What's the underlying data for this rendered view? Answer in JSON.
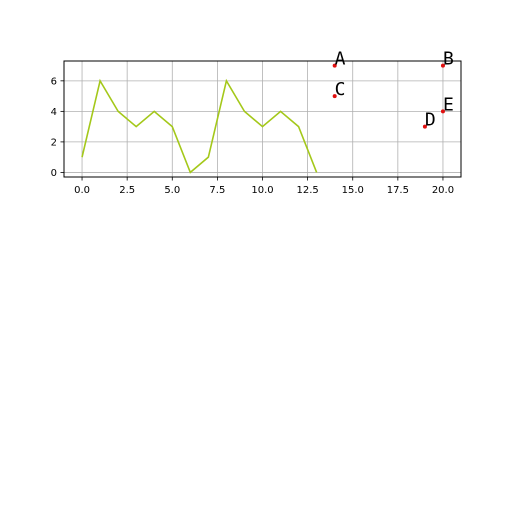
{
  "chart_data": {
    "type": "line",
    "xlim": [
      -1,
      21
    ],
    "ylim": [
      -0.3,
      7.3
    ],
    "xticks": [
      0.0,
      2.5,
      5.0,
      7.5,
      10.0,
      12.5,
      15.0,
      17.5,
      20.0
    ],
    "xtick_labels": [
      "0.0",
      "2.5",
      "5.0",
      "7.5",
      "10.0",
      "12.5",
      "15.0",
      "17.5",
      "20.0"
    ],
    "yticks": [
      0,
      2,
      4,
      6
    ],
    "ytick_labels": [
      "0",
      "2",
      "4",
      "6"
    ],
    "grid": true,
    "series": [
      {
        "x": [
          0,
          1,
          2,
          3,
          4,
          5,
          6,
          7,
          8,
          9,
          10,
          11,
          12,
          13
        ],
        "y": [
          1,
          6,
          4,
          3,
          4,
          3,
          0,
          1,
          6,
          4,
          3,
          4,
          3,
          0
        ],
        "color": "#a4c81a"
      }
    ],
    "points": [
      {
        "label": "A",
        "x": 14,
        "y": 7
      },
      {
        "label": "B",
        "x": 20,
        "y": 7
      },
      {
        "label": "C",
        "x": 14,
        "y": 5
      },
      {
        "label": "D",
        "x": 19,
        "y": 3
      },
      {
        "label": "E",
        "x": 20,
        "y": 4
      }
    ],
    "point_color": "#e01010",
    "grid_color": "#b0b0b0"
  }
}
